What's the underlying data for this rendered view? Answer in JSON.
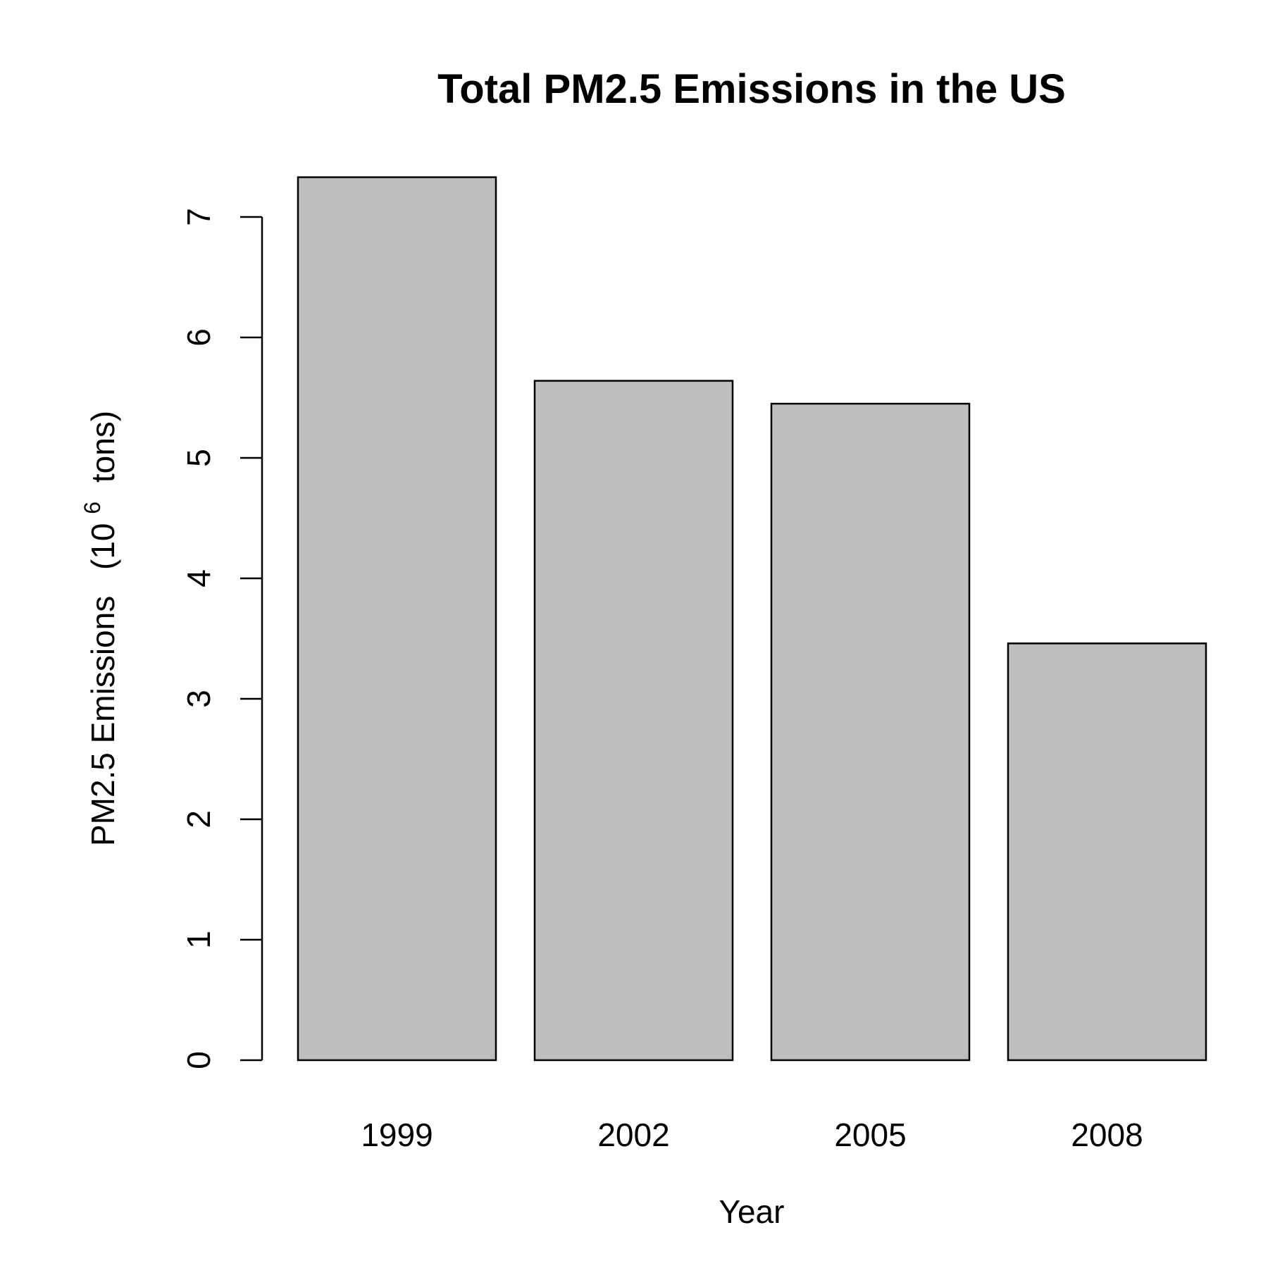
{
  "chart_data": {
    "type": "bar",
    "title": "Total PM2.5 Emissions in the US",
    "xlabel": "Year",
    "ylabel_main": "PM2.5 Emissions",
    "ylabel_unit_open": "(10",
    "ylabel_unit_exp": "6",
    "ylabel_unit_close": "tons)",
    "categories": [
      "1999",
      "2002",
      "2005",
      "2008"
    ],
    "values": [
      7.33,
      5.64,
      5.45,
      3.46
    ],
    "ylim": [
      0,
      7.5
    ],
    "yticks": [
      0,
      1,
      2,
      3,
      4,
      5,
      6,
      7
    ],
    "grid": false,
    "colors": {
      "bar_fill": "#bebebe",
      "bar_stroke": "#000000"
    }
  }
}
